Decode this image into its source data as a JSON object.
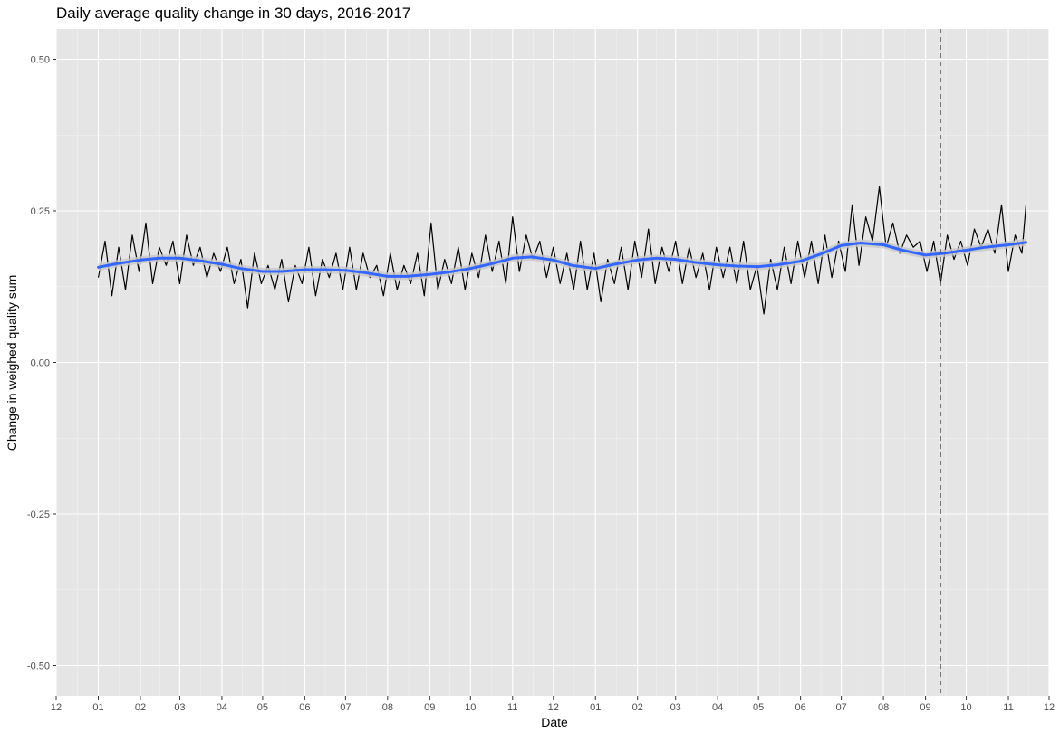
{
  "chart_data": {
    "type": "line",
    "title": "Daily average quality change in 30 days, 2016-2017",
    "xlabel": "Date",
    "ylabel": "Change in weighed quality sum",
    "ylim": [
      -0.55,
      0.55
    ],
    "y_ticks": [
      -0.5,
      -0.25,
      0.0,
      0.25,
      0.5
    ],
    "y_tick_labels": [
      "-0.50",
      "-0.25",
      "0.00",
      "0.25",
      "0.50"
    ],
    "x_range": [
      "2015-12-01",
      "2017-12-01"
    ],
    "x_ticks": [
      "2015-12-01",
      "2016-01-01",
      "2016-02-01",
      "2016-03-01",
      "2016-04-01",
      "2016-05-01",
      "2016-06-01",
      "2016-07-01",
      "2016-08-01",
      "2016-09-01",
      "2016-10-01",
      "2016-11-01",
      "2016-12-01",
      "2017-01-01",
      "2017-02-01",
      "2017-03-01",
      "2017-04-01",
      "2017-05-01",
      "2017-06-01",
      "2017-07-01",
      "2017-08-01",
      "2017-09-01",
      "2017-10-01",
      "2017-11-01",
      "2017-12-01"
    ],
    "x_tick_labels": [
      "12",
      "01",
      "02",
      "03",
      "04",
      "05",
      "06",
      "07",
      "08",
      "09",
      "10",
      "11",
      "12",
      "01",
      "02",
      "03",
      "04",
      "05",
      "06",
      "07",
      "08",
      "09",
      "10",
      "11",
      "12"
    ],
    "grid": true,
    "background": "#e5e5e5",
    "series": [
      {
        "type": "line",
        "color": "#000000",
        "x": [
          "2016-01-01",
          "2016-01-06",
          "2016-01-11",
          "2016-01-16",
          "2016-01-21",
          "2016-01-26",
          "2016-01-31",
          "2016-02-05",
          "2016-02-10",
          "2016-02-15",
          "2016-02-20",
          "2016-02-25",
          "2016-03-01",
          "2016-03-06",
          "2016-03-11",
          "2016-03-16",
          "2016-03-21",
          "2016-03-26",
          "2016-03-31",
          "2016-04-05",
          "2016-04-10",
          "2016-04-15",
          "2016-04-20",
          "2016-04-25",
          "2016-04-30",
          "2016-05-05",
          "2016-05-10",
          "2016-05-15",
          "2016-05-20",
          "2016-05-25",
          "2016-05-30",
          "2016-06-04",
          "2016-06-09",
          "2016-06-14",
          "2016-06-19",
          "2016-06-24",
          "2016-06-29",
          "2016-07-04",
          "2016-07-09",
          "2016-07-14",
          "2016-07-19",
          "2016-07-24",
          "2016-07-29",
          "2016-08-03",
          "2016-08-08",
          "2016-08-13",
          "2016-08-18",
          "2016-08-23",
          "2016-08-28",
          "2016-09-02",
          "2016-09-07",
          "2016-09-12",
          "2016-09-17",
          "2016-09-22",
          "2016-09-27",
          "2016-10-02",
          "2016-10-07",
          "2016-10-12",
          "2016-10-17",
          "2016-10-22",
          "2016-10-27",
          "2016-11-01",
          "2016-11-06",
          "2016-11-11",
          "2016-11-16",
          "2016-11-21",
          "2016-11-26",
          "2016-12-01",
          "2016-12-06",
          "2016-12-11",
          "2016-12-16",
          "2016-12-21",
          "2016-12-26",
          "2016-12-31",
          "2017-01-05",
          "2017-01-10",
          "2017-01-15",
          "2017-01-20",
          "2017-01-25",
          "2017-01-30",
          "2017-02-04",
          "2017-02-09",
          "2017-02-14",
          "2017-02-19",
          "2017-02-24",
          "2017-03-01",
          "2017-03-06",
          "2017-03-11",
          "2017-03-16",
          "2017-03-21",
          "2017-03-26",
          "2017-03-31",
          "2017-04-05",
          "2017-04-10",
          "2017-04-15",
          "2017-04-20",
          "2017-04-25",
          "2017-04-30",
          "2017-05-05",
          "2017-05-10",
          "2017-05-15",
          "2017-05-20",
          "2017-05-25",
          "2017-05-30",
          "2017-06-04",
          "2017-06-09",
          "2017-06-14",
          "2017-06-19",
          "2017-06-24",
          "2017-06-29",
          "2017-07-04",
          "2017-07-09",
          "2017-07-14",
          "2017-07-19",
          "2017-07-24",
          "2017-07-29",
          "2017-08-03",
          "2017-08-08",
          "2017-08-13",
          "2017-08-18",
          "2017-08-23",
          "2017-08-28",
          "2017-09-02",
          "2017-09-07",
          "2017-09-12",
          "2017-09-17",
          "2017-09-22",
          "2017-09-27",
          "2017-10-02",
          "2017-10-07",
          "2017-10-12",
          "2017-10-17",
          "2017-10-22",
          "2017-10-27",
          "2017-11-01",
          "2017-11-06",
          "2017-11-11",
          "2017-11-14"
        ],
        "values": [
          0.14,
          0.2,
          0.11,
          0.19,
          0.12,
          0.21,
          0.15,
          0.23,
          0.13,
          0.19,
          0.16,
          0.2,
          0.13,
          0.21,
          0.16,
          0.19,
          0.14,
          0.18,
          0.15,
          0.19,
          0.13,
          0.17,
          0.09,
          0.18,
          0.13,
          0.16,
          0.12,
          0.17,
          0.1,
          0.16,
          0.13,
          0.19,
          0.11,
          0.17,
          0.14,
          0.18,
          0.12,
          0.19,
          0.12,
          0.18,
          0.14,
          0.16,
          0.11,
          0.18,
          0.12,
          0.16,
          0.13,
          0.18,
          0.11,
          0.23,
          0.12,
          0.17,
          0.13,
          0.19,
          0.12,
          0.18,
          0.14,
          0.21,
          0.15,
          0.2,
          0.13,
          0.24,
          0.15,
          0.21,
          0.17,
          0.2,
          0.14,
          0.19,
          0.13,
          0.18,
          0.12,
          0.2,
          0.12,
          0.18,
          0.1,
          0.17,
          0.13,
          0.19,
          0.12,
          0.2,
          0.14,
          0.22,
          0.13,
          0.19,
          0.15,
          0.2,
          0.13,
          0.19,
          0.14,
          0.18,
          0.12,
          0.19,
          0.14,
          0.19,
          0.13,
          0.2,
          0.12,
          0.16,
          0.08,
          0.17,
          0.12,
          0.19,
          0.13,
          0.2,
          0.14,
          0.2,
          0.13,
          0.21,
          0.14,
          0.2,
          0.15,
          0.26,
          0.16,
          0.24,
          0.2,
          0.29,
          0.19,
          0.23,
          0.18,
          0.21,
          0.19,
          0.2,
          0.15,
          0.2,
          0.13,
          0.21,
          0.17,
          0.2,
          0.16,
          0.22,
          0.19,
          0.22,
          0.18,
          0.26,
          0.15,
          0.21,
          0.18,
          0.26
        ]
      },
      {
        "type": "smooth",
        "color": "#3366ff",
        "band_color": "#c8c8c8",
        "x": [
          "2016-01-01",
          "2016-01-15",
          "2016-02-01",
          "2016-02-15",
          "2016-03-01",
          "2016-03-15",
          "2016-04-01",
          "2016-04-15",
          "2016-05-01",
          "2016-05-15",
          "2016-06-01",
          "2016-06-15",
          "2016-07-01",
          "2016-07-15",
          "2016-08-01",
          "2016-08-15",
          "2016-09-01",
          "2016-09-15",
          "2016-10-01",
          "2016-10-15",
          "2016-11-01",
          "2016-11-15",
          "2016-12-01",
          "2016-12-15",
          "2017-01-01",
          "2017-01-15",
          "2017-02-01",
          "2017-02-15",
          "2017-03-01",
          "2017-03-15",
          "2017-04-01",
          "2017-04-15",
          "2017-05-01",
          "2017-05-15",
          "2017-06-01",
          "2017-06-15",
          "2017-07-01",
          "2017-07-15",
          "2017-08-01",
          "2017-08-15",
          "2017-09-01",
          "2017-09-15",
          "2017-10-01",
          "2017-10-15",
          "2017-11-01",
          "2017-11-14"
        ],
        "values": [
          0.157,
          0.163,
          0.169,
          0.172,
          0.172,
          0.168,
          0.162,
          0.155,
          0.15,
          0.15,
          0.153,
          0.153,
          0.152,
          0.148,
          0.142,
          0.142,
          0.145,
          0.149,
          0.155,
          0.162,
          0.172,
          0.174,
          0.169,
          0.16,
          0.155,
          0.162,
          0.169,
          0.172,
          0.17,
          0.165,
          0.161,
          0.159,
          0.158,
          0.161,
          0.167,
          0.178,
          0.193,
          0.197,
          0.194,
          0.185,
          0.177,
          0.18,
          0.185,
          0.19,
          0.194,
          0.198
        ],
        "band_halfwidth": 0.006
      }
    ],
    "annotations": [
      {
        "type": "vline",
        "x": "2017-09-12",
        "style": "dashed",
        "color": "#555555"
      }
    ]
  }
}
